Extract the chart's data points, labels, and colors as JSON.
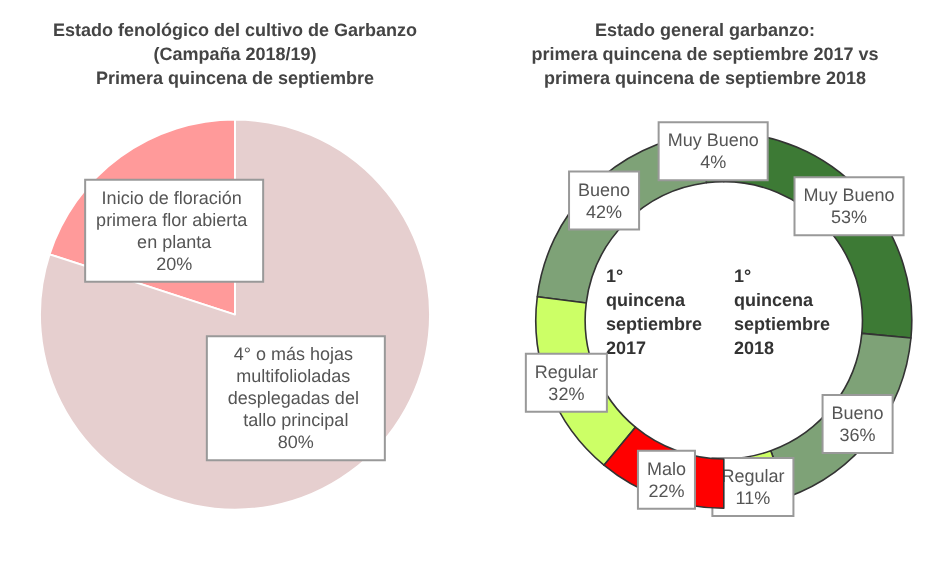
{
  "chart_data": [
    {
      "type": "pie",
      "title": "Estado fenológico del cultivo de Garbanzo\n(Campaña 2018/19)\nPrimera quincena de septiembre",
      "categories": [
        "Inicio de floración primera flor abierta en planta",
        "4° o más hojas multifolioladas desplegadas del tallo principal"
      ],
      "values": [
        20,
        80
      ],
      "value_labels": [
        "20%",
        "80%"
      ],
      "colors": [
        "#ff9a9a",
        "#e6cfcf"
      ],
      "legend": false
    },
    {
      "type": "donut",
      "title": "Estado general garbanzo:\nprimera quincena de septiembre 2017 vs\nprimera quincena de septiembre 2018",
      "annotations": [
        "1° quincena septiembre 2017"
      ],
      "categories": [
        "Muy Bueno",
        "Bueno",
        "Regular",
        "Malo"
      ],
      "values": [
        4,
        42,
        32,
        22
      ],
      "value_labels": [
        "4%",
        "42%",
        "32%",
        "22%"
      ],
      "colors": [
        "#3d7a35",
        "#7ea277",
        "#ccff66",
        "#ff0000"
      ],
      "legend": false
    },
    {
      "type": "donut",
      "annotations": [
        "1° quincena septiembre 2018"
      ],
      "categories": [
        "Muy Bueno",
        "Bueno",
        "Regular"
      ],
      "values": [
        53,
        36,
        11
      ],
      "value_labels": [
        "53%",
        "36%",
        "11%"
      ],
      "colors": [
        "#3d7a35",
        "#7ea277",
        "#ccff66"
      ],
      "legend": false
    }
  ]
}
